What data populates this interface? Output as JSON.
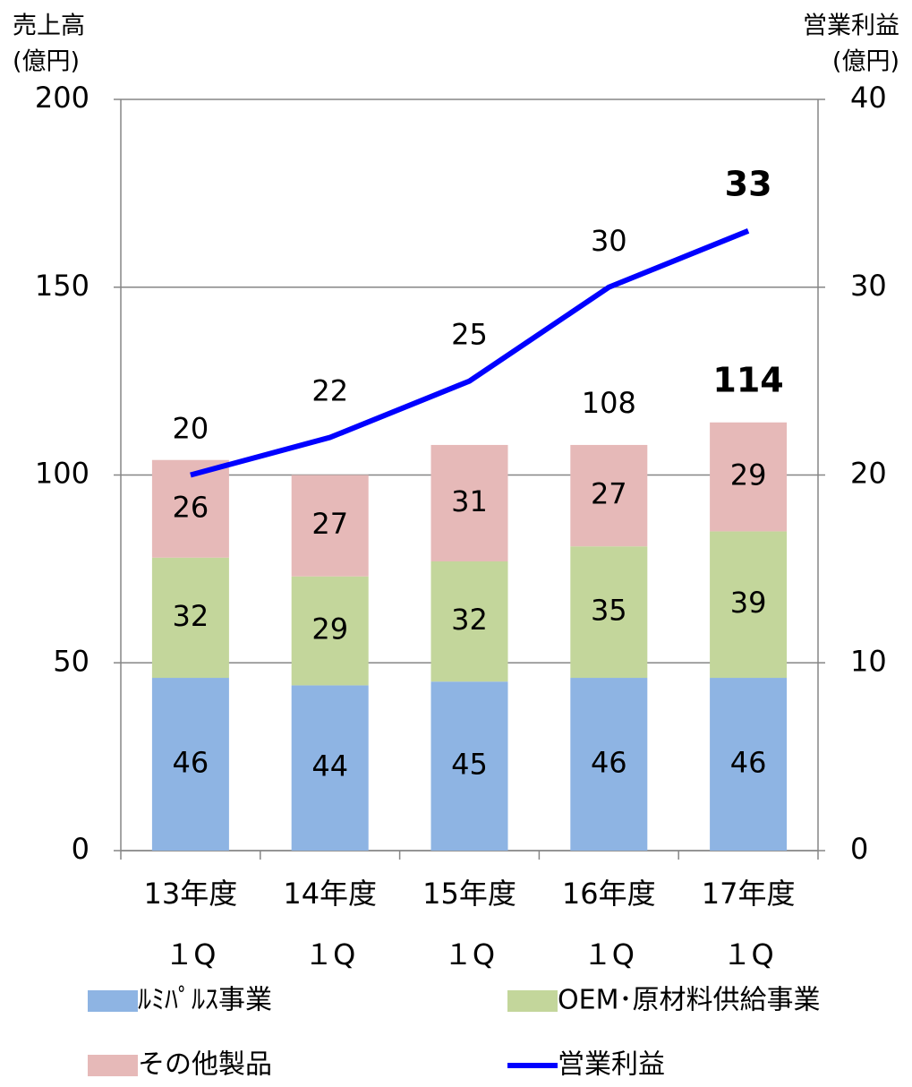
{
  "chart_data": {
    "type": "bar",
    "stacked": true,
    "y_label": [
      "売上高",
      "(億円)"
    ],
    "y2_label": [
      "営業利益",
      "(億円)"
    ],
    "categories": [
      [
        "13年度",
        "１Q"
      ],
      [
        "14年度",
        "１Q"
      ],
      [
        "15年度",
        "１Q"
      ],
      [
        "16年度",
        "１Q"
      ],
      [
        "17年度",
        "１Q"
      ]
    ],
    "series": [
      {
        "name": "ﾙﾐﾊﾟﾙｽ事業",
        "color": "#8eb4e3",
        "values": [
          46,
          44,
          45,
          46,
          46
        ]
      },
      {
        "name": "OEM･原材料供給事業",
        "color": "#c3d69b",
        "values": [
          32,
          29,
          32,
          35,
          39
        ]
      },
      {
        "name": "その他製品",
        "color": "#e6b9b8",
        "values": [
          26,
          27,
          31,
          27,
          29
        ]
      },
      {
        "name": "営業利益",
        "type": "line",
        "axis": "y2",
        "color": "#0000ff",
        "values": [
          20,
          22,
          25,
          30,
          33
        ]
      }
    ],
    "totals": [
      null,
      null,
      null,
      108,
      114
    ],
    "highlight_color": "#e36c09",
    "highlight_last": true,
    "ylim": [
      0,
      200
    ],
    "yticks": [
      0,
      50,
      100,
      150,
      200
    ],
    "y2lim": [
      0,
      40
    ],
    "y2ticks": [
      0,
      10,
      20,
      30,
      40
    ],
    "grid": true
  }
}
